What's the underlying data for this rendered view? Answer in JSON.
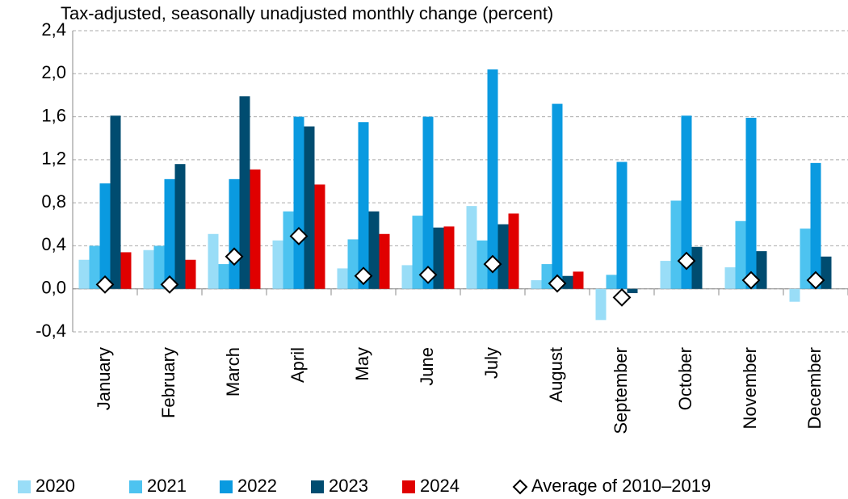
{
  "chart_data": {
    "type": "bar",
    "title": "Tax-adjusted, seasonally unadjusted monthly change (percent)",
    "categories": [
      "January",
      "February",
      "March",
      "April",
      "May",
      "June",
      "July",
      "August",
      "September",
      "October",
      "November",
      "December"
    ],
    "series": [
      {
        "name": "2020",
        "color": "#99ddf7",
        "values": [
          0.27,
          0.36,
          0.51,
          0.45,
          0.19,
          0.22,
          0.77,
          0.08,
          -0.29,
          0.26,
          0.2,
          -0.12
        ]
      },
      {
        "name": "2021",
        "color": "#4dc3f0",
        "values": [
          0.4,
          0.4,
          0.23,
          0.72,
          0.46,
          0.68,
          0.45,
          0.23,
          0.13,
          0.82,
          0.63,
          0.56
        ]
      },
      {
        "name": "2022",
        "color": "#0a9ae0",
        "values": [
          0.98,
          1.02,
          1.02,
          1.6,
          1.55,
          1.6,
          2.04,
          1.72,
          1.18,
          1.61,
          1.59,
          1.17
        ]
      },
      {
        "name": "2023",
        "color": "#004c70",
        "values": [
          1.61,
          1.16,
          1.79,
          1.51,
          0.72,
          0.57,
          0.6,
          0.12,
          -0.04,
          0.39,
          0.35,
          0.3
        ]
      },
      {
        "name": "2024",
        "color": "#e00000",
        "values": [
          0.34,
          0.27,
          1.11,
          0.97,
          0.51,
          0.58,
          0.7,
          0.16,
          null,
          null,
          null,
          null
        ]
      },
      {
        "name": "Average of 2010–2019",
        "color": "#ffffff",
        "type": "scatter",
        "marker": "diamond",
        "values": [
          0.04,
          0.04,
          0.3,
          0.49,
          0.12,
          0.13,
          0.23,
          0.05,
          -0.08,
          0.26,
          0.08,
          0.08
        ]
      }
    ],
    "ylim": [
      -0.4,
      2.4
    ],
    "yticks": [
      {
        "value": -0.4,
        "label": "-0,4"
      },
      {
        "value": 0,
        "label": "0,0"
      },
      {
        "value": 0.4,
        "label": "0,4"
      },
      {
        "value": 0.8,
        "label": "0,8"
      },
      {
        "value": 1.2,
        "label": "1,2"
      },
      {
        "value": 1.6,
        "label": "1,6"
      },
      {
        "value": 2.0,
        "label": "2,0"
      },
      {
        "value": 2.4,
        "label": "2,4"
      }
    ],
    "grid": true,
    "legend": "bottom"
  }
}
